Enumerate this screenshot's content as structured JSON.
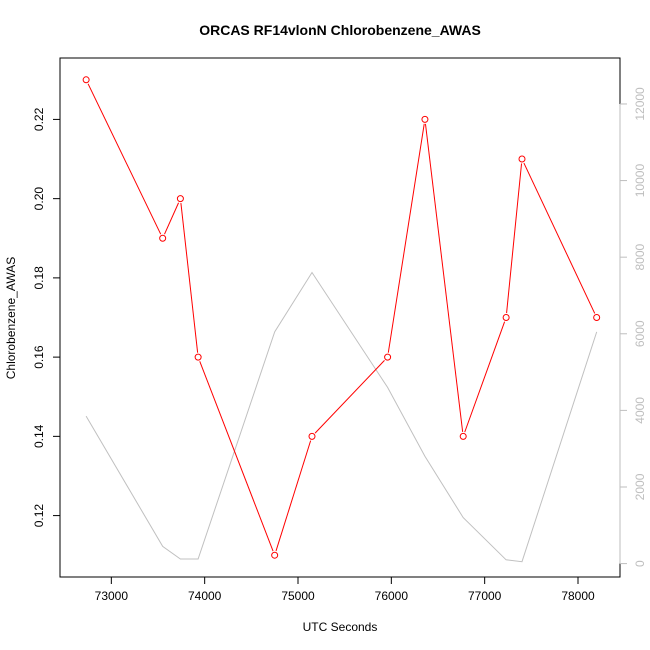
{
  "chart_data": {
    "type": "line",
    "title": "ORCAS RF14vlonN Chlorobenzene_AWAS",
    "xlabel": "UTC Seconds",
    "ylabel": "Chlorobenzene_AWAS",
    "xlim": [
      72450,
      78450
    ],
    "ylim": [
      0.1045,
      0.2355
    ],
    "y2lim": [
      -350,
      13200
    ],
    "x_ticks": [
      73000,
      74000,
      75000,
      76000,
      77000,
      78000
    ],
    "y_ticks": [
      0.12,
      0.14,
      0.16,
      0.18,
      0.2,
      0.22
    ],
    "y_tick_labels": [
      "0.12",
      "0.14",
      "0.16",
      "0.18",
      "0.20",
      "0.22"
    ],
    "y2_ticks": [
      0,
      2000,
      4000,
      6000,
      8000,
      10000,
      12000
    ],
    "grid": false,
    "legend": "none",
    "series": [
      {
        "axis": "left",
        "color": "#ff0000",
        "marker": "open-circle",
        "x": [
          72730,
          73550,
          73740,
          73930,
          74750,
          75150,
          75960,
          76360,
          76770,
          77230,
          77400,
          78200
        ],
        "values": [
          0.23,
          0.19,
          0.2,
          0.16,
          0.11,
          0.14,
          0.16,
          0.22,
          0.14,
          0.17,
          0.21,
          0.17
        ]
      },
      {
        "axis": "right",
        "color": "#c0c0c0",
        "marker": "none",
        "x": [
          72730,
          73550,
          73740,
          73930,
          74750,
          75150,
          75960,
          76360,
          76770,
          77230,
          77400,
          78200
        ],
        "values": [
          3850,
          450,
          120,
          120,
          6050,
          7600,
          4600,
          2800,
          1200,
          100,
          50,
          6050
        ]
      }
    ]
  }
}
